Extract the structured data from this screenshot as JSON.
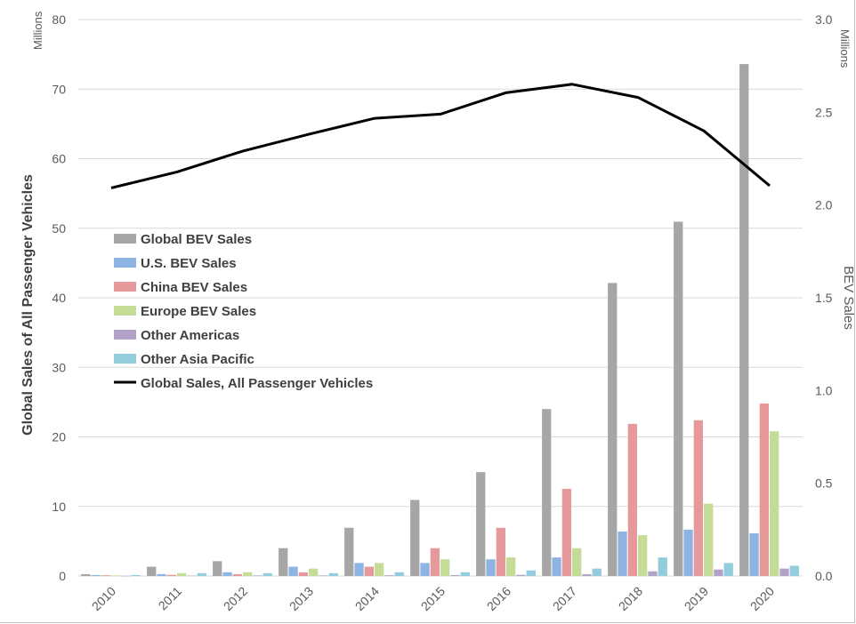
{
  "chart_data": {
    "type": "bar",
    "categories": [
      "2010",
      "2011",
      "2012",
      "2013",
      "2014",
      "2015",
      "2016",
      "2017",
      "2018",
      "2019",
      "2020"
    ],
    "series": [
      {
        "name": "Global BEV Sales",
        "axis": "right",
        "color": "#a6a6a6",
        "values": [
          0.01,
          0.05,
          0.08,
          0.15,
          0.26,
          0.41,
          0.56,
          0.9,
          1.58,
          1.91,
          2.76
        ]
      },
      {
        "name": "U.S. BEV Sales",
        "axis": "right",
        "color": "#8eb4e3",
        "values": [
          0.005,
          0.01,
          0.02,
          0.05,
          0.07,
          0.07,
          0.09,
          0.1,
          0.24,
          0.25,
          0.23
        ]
      },
      {
        "name": "China BEV Sales",
        "axis": "right",
        "color": "#e6999a",
        "values": [
          0.004,
          0.006,
          0.01,
          0.02,
          0.05,
          0.15,
          0.26,
          0.47,
          0.82,
          0.84,
          0.93
        ]
      },
      {
        "name": "Europe BEV Sales",
        "axis": "right",
        "color": "#c4dc95",
        "values": [
          0.003,
          0.015,
          0.02,
          0.04,
          0.07,
          0.09,
          0.1,
          0.15,
          0.22,
          0.39,
          0.78
        ]
      },
      {
        "name": "Other Americas",
        "axis": "right",
        "color": "#b3a2c7",
        "values": [
          0.001,
          0.002,
          0.003,
          0.003,
          0.004,
          0.005,
          0.006,
          0.01,
          0.025,
          0.035,
          0.04
        ]
      },
      {
        "name": "Other Asia Pacific",
        "axis": "right",
        "color": "#93cddd",
        "values": [
          0.005,
          0.015,
          0.015,
          0.015,
          0.02,
          0.02,
          0.03,
          0.04,
          0.1,
          0.07,
          0.055
        ]
      }
    ],
    "line_series": {
      "name": "Global Sales, All Passenger Vehicles",
      "axis": "left",
      "color": "#000000",
      "values": [
        55.8,
        58.1,
        61.1,
        63.5,
        65.8,
        66.4,
        69.5,
        70.7,
        68.8,
        64.0,
        56.1
      ]
    },
    "ylabel": "Global Sales of All Passenger Vehicles",
    "y_unit": "Millions",
    "ylim": [
      0,
      80
    ],
    "yticks": [
      0,
      10,
      20,
      30,
      40,
      50,
      60,
      70,
      80
    ],
    "y2label": "BEV Sales",
    "y2_unit": "Millions",
    "y2lim": [
      0,
      3.0
    ],
    "y2ticks": [
      "0.0",
      "0.5",
      "1.0",
      "1.5",
      "2.0",
      "2.5",
      "3.0"
    ],
    "grid": true,
    "legend_position": "left, inside plot"
  }
}
